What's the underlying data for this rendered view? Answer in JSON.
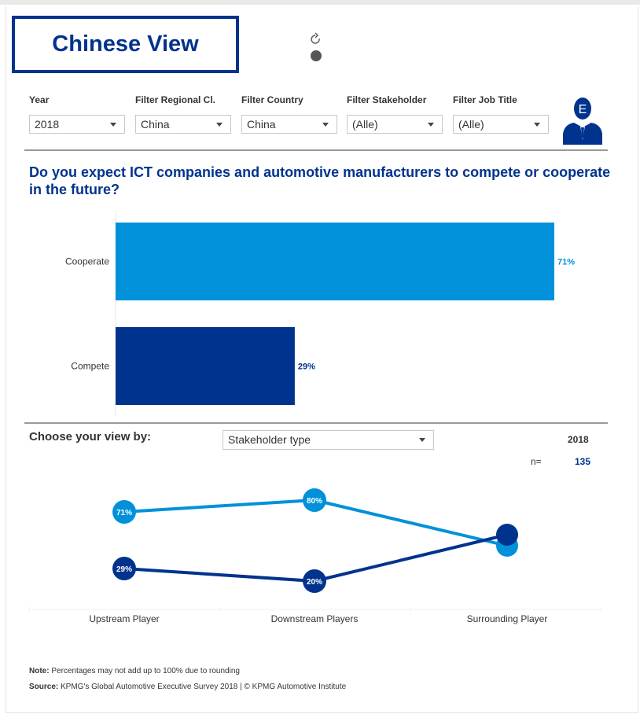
{
  "header": {
    "title": "Chinese View"
  },
  "filters": [
    {
      "label": "Year",
      "value": "2018"
    },
    {
      "label": "Filter Regional Cl.",
      "value": "China"
    },
    {
      "label": "Filter Country",
      "value": "China"
    },
    {
      "label": "Filter Stakeholder",
      "value": "(Alle)"
    },
    {
      "label": "Filter Job Title",
      "value": "(Alle)"
    }
  ],
  "question": "Do you expect ICT companies and automotive manufacturers to compete or cooperate in the future?",
  "view": {
    "label": "Choose your view by:",
    "selected": "Stakeholder type",
    "year": "2018",
    "n_label": "n=",
    "n_value": "135"
  },
  "colors": {
    "cooperate": "#0091da",
    "compete": "#00338d",
    "brand": "#00338d"
  },
  "chart_data": [
    {
      "type": "bar",
      "orientation": "horizontal",
      "categories": [
        "Cooperate",
        "Compete"
      ],
      "values": [
        71,
        29
      ],
      "value_labels": [
        "71%",
        "29%"
      ],
      "xlim": [
        0,
        100
      ]
    },
    {
      "type": "line",
      "x": [
        "Upstream Player",
        "Downstream Players",
        "Surrounding Player"
      ],
      "series": [
        {
          "values": [
            71,
            80,
            null
          ],
          "labels": [
            "71%",
            "80%",
            ""
          ],
          "color": "#0091da"
        },
        {
          "values": [
            29,
            20,
            null
          ],
          "labels": [
            "29%",
            "20%",
            ""
          ],
          "color": "#00338d"
        }
      ]
    }
  ],
  "footer": {
    "note_label": "Note:",
    "note_text": " Percentages may not add up to 100% due to rounding",
    "source_label": "Source:",
    "source_text": " KPMG's Global Automotive Executive Survey 2018 | © KPMG Automotive Institute"
  }
}
